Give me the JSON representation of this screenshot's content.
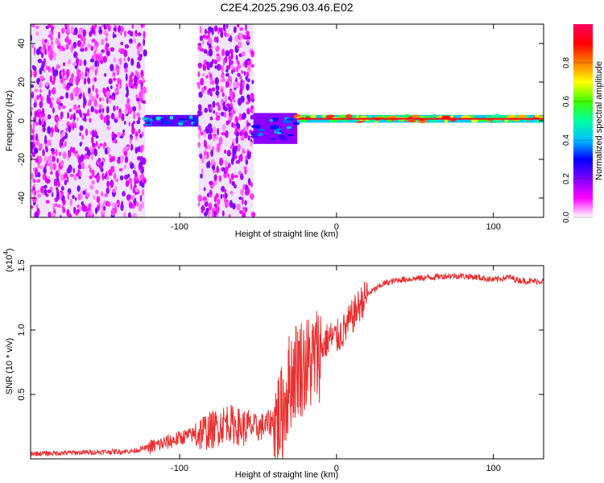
{
  "figure_title": "C2E4.2025.296.03.46.E02",
  "chart_data": [
    {
      "type": "heatmap",
      "title": "C2E4.2025.296.03.46.E02",
      "xlabel": "Height of straight line (km)",
      "ylabel": "Frequency (Hz)",
      "xlim": [
        -195,
        132
      ],
      "ylim": [
        -50,
        50
      ],
      "xticks": [
        -100,
        0,
        100
      ],
      "yticks": [
        -40,
        -20,
        0,
        20,
        40
      ],
      "colorbar": {
        "label": "Normalized spectral amplitude",
        "range": [
          0,
          1
        ],
        "ticks": [
          0.0,
          0.2,
          0.4,
          0.6,
          0.8
        ],
        "colormap": [
          "#ffffff",
          "#ff00ff",
          "#8000ff",
          "#0000ff",
          "#00c0ff",
          "#00ffa0",
          "#40ff00",
          "#ffff00",
          "#ff8000",
          "#ff0000",
          "#ff0060"
        ]
      },
      "regions": [
        {
          "name": "broadband noise",
          "x_range": [
            -195,
            -122
          ],
          "freq_range": [
            -50,
            50
          ],
          "typical_amplitude": 0.15
        },
        {
          "name": "narrow band near 0 Hz",
          "x_range": [
            -122,
            -88
          ],
          "freq_range": [
            -3,
            3
          ],
          "typical_amplitude": 0.4
        },
        {
          "name": "broadband noise",
          "x_range": [
            -88,
            -53
          ],
          "freq_range": [
            -50,
            50
          ],
          "typical_amplitude": 0.15
        },
        {
          "name": "scattered band",
          "x_range": [
            -53,
            -25
          ],
          "freq_range": [
            -12,
            4
          ],
          "typical_amplitude": 0.35
        },
        {
          "name": "narrow band near 0 Hz",
          "x_range": [
            -25,
            132
          ],
          "freq_range": [
            -1,
            3
          ],
          "typical_amplitude": 0.75
        }
      ]
    },
    {
      "type": "line",
      "xlabel": "Height of straight line (km)",
      "ylabel": "SNR (10 * v/v)",
      "y_multiplier_label": "(x10",
      "y_multiplier_exp": "4",
      "y_multiplier_close": ")",
      "xlim": [
        -195,
        132
      ],
      "ylim": [
        0,
        15000
      ],
      "xticks": [
        -100,
        0,
        100
      ],
      "yticks": [
        5000,
        10000,
        15000
      ],
      "ytick_labels": [
        "0.5",
        "1.0",
        "1.5"
      ],
      "color": "#e83030",
      "series": [
        {
          "name": "SNR",
          "x": [
            -195,
            -160,
            -130,
            -120,
            -110,
            -100,
            -95,
            -90,
            -85,
            -80,
            -75,
            -70,
            -65,
            -60,
            -55,
            -50,
            -45,
            -40,
            -35,
            -30,
            -25,
            -20,
            -15,
            -10,
            -5,
            0,
            5,
            10,
            15,
            20,
            25,
            30,
            40,
            50,
            60,
            70,
            80,
            90,
            100,
            105,
            110,
            115,
            120,
            132
          ],
          "y": [
            400,
            500,
            600,
            900,
            1200,
            1600,
            1800,
            1900,
            2100,
            2200,
            2500,
            2900,
            2600,
            2400,
            2500,
            2400,
            2600,
            3000,
            3300,
            6000,
            7200,
            7200,
            7600,
            8500,
            9400,
            9400,
            10000,
            11000,
            12000,
            12800,
            13200,
            13600,
            13900,
            14000,
            14100,
            14200,
            14200,
            14100,
            13900,
            14000,
            14100,
            13900,
            13800,
            13800
          ]
        }
      ],
      "noise_amplitude": [
        {
          "x_range": [
            -195,
            -120
          ],
          "amp": 200
        },
        {
          "x_range": [
            -120,
            -90
          ],
          "amp": 600
        },
        {
          "x_range": [
            -90,
            -55
          ],
          "amp": 1500
        },
        {
          "x_range": [
            -55,
            -40
          ],
          "amp": 1100
        },
        {
          "x_range": [
            -40,
            -10
          ],
          "amp": 4000
        },
        {
          "x_range": [
            -10,
            20
          ],
          "amp": 1400
        },
        {
          "x_range": [
            20,
            132
          ],
          "amp": 250
        }
      ]
    }
  ]
}
